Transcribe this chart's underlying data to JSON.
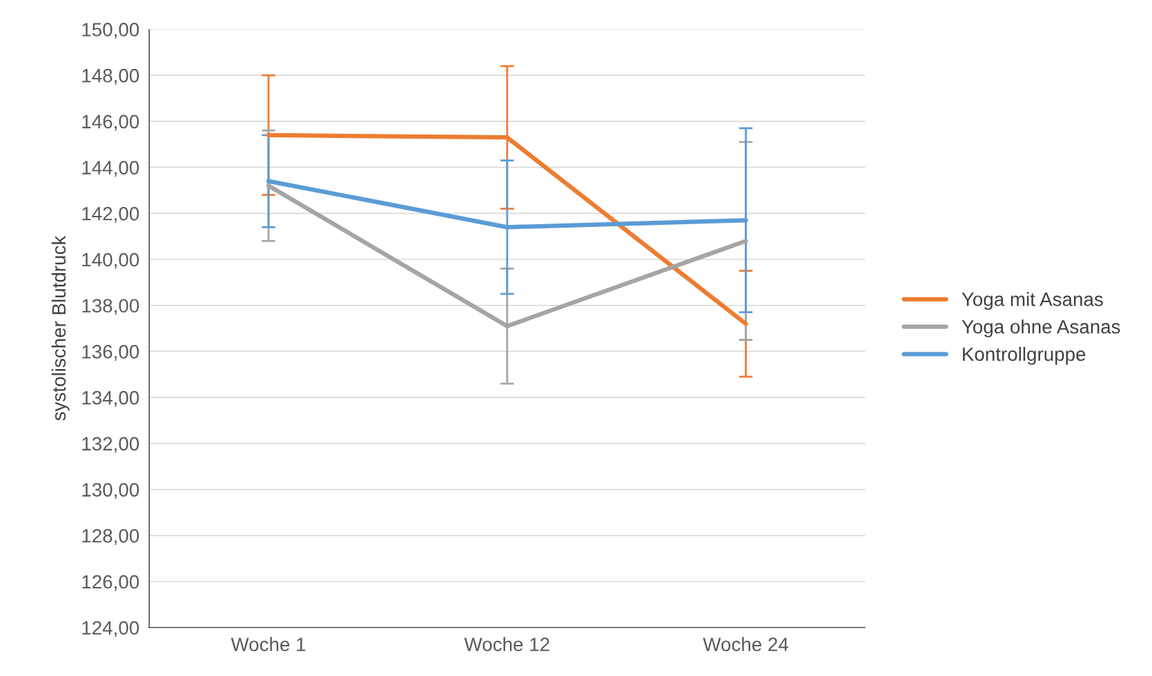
{
  "chart_data": {
    "type": "line",
    "ylabel": "systolischer Blutdruck",
    "categories": [
      "Woche 1",
      "Woche 12",
      "Woche 24"
    ],
    "series": [
      {
        "name": "Yoga mit Asanas",
        "color": "#ed7d31",
        "values": [
          145.4,
          145.3,
          137.2
        ],
        "errors": [
          2.6,
          3.1,
          2.3
        ]
      },
      {
        "name": "Yoga ohne Asanas",
        "color": "#a5a5a5",
        "values": [
          143.2,
          137.1,
          140.8
        ],
        "errors": [
          2.4,
          2.5,
          4.3
        ]
      },
      {
        "name": "Kontrollgruppe",
        "color": "#5b9bd5",
        "values": [
          143.4,
          141.4,
          141.7
        ],
        "errors": [
          2.0,
          2.9,
          4.0
        ]
      }
    ],
    "ylim": [
      124,
      150
    ],
    "yticks": [
      {
        "value": 124,
        "label": "124,00"
      },
      {
        "value": 126,
        "label": "126,00"
      },
      {
        "value": 128,
        "label": "128,00"
      },
      {
        "value": 130,
        "label": "130,00"
      },
      {
        "value": 132,
        "label": "132,00"
      },
      {
        "value": 134,
        "label": "134,00"
      },
      {
        "value": 136,
        "label": "136,00"
      },
      {
        "value": 138,
        "label": "138,00"
      },
      {
        "value": 140,
        "label": "140,00"
      },
      {
        "value": 142,
        "label": "142,00"
      },
      {
        "value": 144,
        "label": "144,00"
      },
      {
        "value": 146,
        "label": "146,00"
      },
      {
        "value": 148,
        "label": "148,00"
      },
      {
        "value": 150,
        "label": "150,00"
      }
    ],
    "grid": "y",
    "legend": "right",
    "marker": "none",
    "line_style": "solid"
  }
}
